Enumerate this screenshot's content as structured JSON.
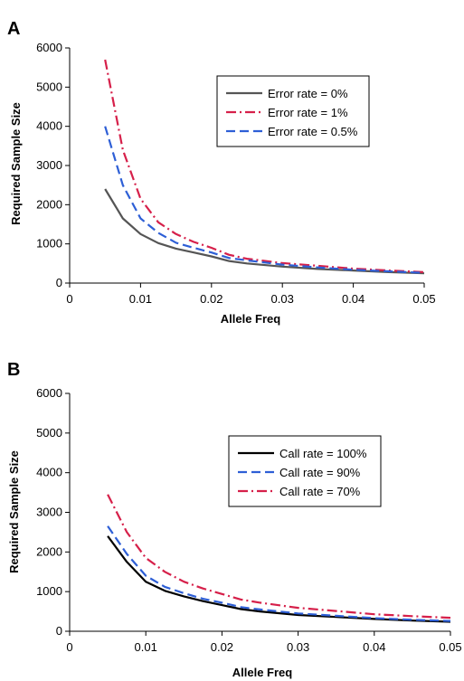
{
  "chart_data": [
    {
      "panel": "A",
      "type": "line",
      "xlabel": "Allele Freq",
      "ylabel": "Required Sample Size",
      "xlim": [
        0,
        0.05
      ],
      "ylim": [
        0,
        6000
      ],
      "xticks": [
        0,
        0.01,
        0.02,
        0.03,
        0.04,
        0.05
      ],
      "xtick_labels": [
        "0",
        "0.01",
        "0.02",
        "0.03",
        "0.04",
        "0.05"
      ],
      "yticks": [
        0,
        1000,
        2000,
        3000,
        4000,
        5000,
        6000
      ],
      "ytick_labels": [
        "0",
        "1000",
        "2000",
        "3000",
        "4000",
        "5000",
        "6000"
      ],
      "grid": false,
      "legend_position": "top-right",
      "series": [
        {
          "name": "Error rate = 0%",
          "color": "#555555",
          "dash": "solid",
          "x": [
            0.005,
            0.0075,
            0.01,
            0.0125,
            0.015,
            0.0175,
            0.02,
            0.0225,
            0.025,
            0.03,
            0.035,
            0.04,
            0.045,
            0.05
          ],
          "y": [
            2400,
            1650,
            1250,
            1020,
            880,
            780,
            680,
            560,
            500,
            420,
            360,
            320,
            280,
            250
          ]
        },
        {
          "name": "Error rate = 1%",
          "color": "#d6204a",
          "dash": "dashdot",
          "x": [
            0.005,
            0.0075,
            0.01,
            0.0125,
            0.015,
            0.0175,
            0.02,
            0.0225,
            0.025,
            0.03,
            0.035,
            0.04,
            0.045,
            0.05
          ],
          "y": [
            5700,
            3400,
            2150,
            1550,
            1250,
            1050,
            900,
            720,
            620,
            510,
            440,
            370,
            320,
            280
          ]
        },
        {
          "name": "Error rate = 0.5%",
          "color": "#2e5fd6",
          "dash": "dashed",
          "x": [
            0.005,
            0.0075,
            0.01,
            0.0125,
            0.015,
            0.0175,
            0.02,
            0.0225,
            0.025,
            0.03,
            0.035,
            0.04,
            0.045,
            0.05
          ],
          "y": [
            4000,
            2500,
            1650,
            1280,
            1030,
            900,
            780,
            640,
            580,
            470,
            400,
            340,
            300,
            260
          ]
        }
      ]
    },
    {
      "panel": "B",
      "type": "line",
      "xlabel": "Allele Freq",
      "ylabel": "Required Sample Size",
      "xlim": [
        0,
        0.05
      ],
      "ylim": [
        0,
        6000
      ],
      "xticks": [
        0,
        0.01,
        0.02,
        0.03,
        0.04,
        0.05
      ],
      "xtick_labels": [
        "0",
        "0.01",
        "0.02",
        "0.03",
        "0.04",
        "0.05"
      ],
      "yticks": [
        0,
        1000,
        2000,
        3000,
        4000,
        5000,
        6000
      ],
      "ytick_labels": [
        "0",
        "1000",
        "2000",
        "3000",
        "4000",
        "5000",
        "6000"
      ],
      "grid": false,
      "legend_position": "right",
      "series": [
        {
          "name": "Call rate = 100%",
          "color": "#000000",
          "dash": "solid",
          "x": [
            0.005,
            0.0075,
            0.01,
            0.0125,
            0.015,
            0.0175,
            0.02,
            0.0225,
            0.025,
            0.03,
            0.035,
            0.04,
            0.045,
            0.05
          ],
          "y": [
            2400,
            1750,
            1250,
            1020,
            880,
            760,
            660,
            560,
            500,
            410,
            360,
            310,
            270,
            240
          ]
        },
        {
          "name": "Call rate = 90%",
          "color": "#2e5fd6",
          "dash": "dashed",
          "x": [
            0.005,
            0.0075,
            0.01,
            0.0125,
            0.015,
            0.0175,
            0.02,
            0.0225,
            0.025,
            0.03,
            0.035,
            0.04,
            0.045,
            0.05
          ],
          "y": [
            2650,
            1950,
            1400,
            1120,
            960,
            820,
            720,
            610,
            550,
            450,
            390,
            330,
            290,
            260
          ]
        },
        {
          "name": "Call rate = 70%",
          "color": "#d6204a",
          "dash": "dashdot",
          "x": [
            0.005,
            0.0075,
            0.01,
            0.0125,
            0.015,
            0.0175,
            0.02,
            0.0225,
            0.025,
            0.03,
            0.035,
            0.04,
            0.045,
            0.05
          ],
          "y": [
            3450,
            2500,
            1850,
            1500,
            1250,
            1080,
            940,
            800,
            720,
            590,
            510,
            430,
            380,
            340
          ]
        }
      ]
    }
  ]
}
